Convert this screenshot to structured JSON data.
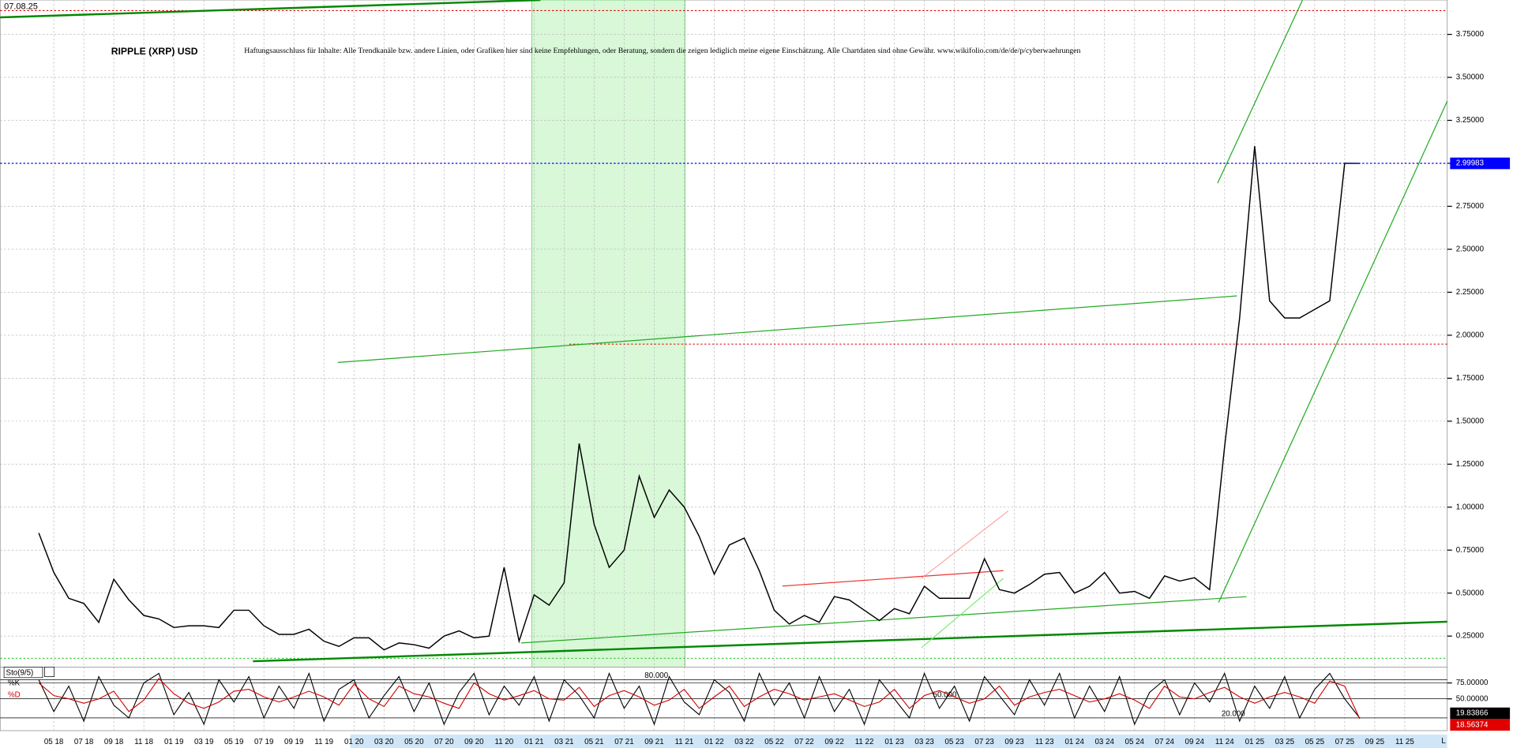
{
  "chart_data": [
    {
      "type": "line",
      "date_label": "07.08.25",
      "title": "RIPPLE (XRP) USD",
      "note": "Haftungsausschluss für Inhalte: Alle Trendkanäle bzw. andere Linien, oder Grafiken hier sind keine Empfehlungen, oder Beratung, sondern die zeigen lediglich meine eigene Einschätzung. Alle Chartdaten sind ohne Gewähr. www.wikifolio.com/de/de/p/cyberwaehrungen",
      "corner_label": "L",
      "categories": [
        null,
        "05 18",
        null,
        "07 18",
        null,
        "09 18",
        null,
        "11 18",
        null,
        "01 19",
        null,
        "03 19",
        null,
        "05 19",
        null,
        "07 19",
        null,
        "09 19",
        null,
        "11 19",
        null,
        "01 20",
        null,
        "03 20",
        null,
        "05 20",
        null,
        "07 20",
        null,
        "09 20",
        null,
        "11 20",
        null,
        "01 21",
        null,
        "03 21",
        null,
        "05 21",
        null,
        "07 21",
        null,
        "09 21",
        null,
        "11 21",
        null,
        "01 22",
        null,
        "03 22",
        null,
        "05 22",
        null,
        "07 22",
        null,
        "09 22",
        null,
        "11 22",
        null,
        "01 23",
        null,
        "03 23",
        null,
        "05 23",
        null,
        "07 23",
        null,
        "09 23",
        null,
        "11 23",
        null,
        "01 24",
        null,
        "03 24",
        null,
        "05 24",
        null,
        "07 24",
        null,
        "09 24",
        null,
        "11 24",
        null,
        "01 25",
        null,
        "03 25",
        null,
        "05 25",
        null,
        "07 25",
        null,
        "09 25",
        null,
        "11 25",
        null
      ],
      "series": [
        {
          "name": "RIPPLE (XRP) USD",
          "color": "#000000",
          "values": [
            0.85,
            0.62,
            0.47,
            0.44,
            0.33,
            0.58,
            0.46,
            0.37,
            0.35,
            0.3,
            0.31,
            0.31,
            0.3,
            0.4,
            0.4,
            0.31,
            0.26,
            0.26,
            0.29,
            0.22,
            0.19,
            0.24,
            0.24,
            0.17,
            0.21,
            0.2,
            0.18,
            0.25,
            0.28,
            0.24,
            0.25,
            0.65,
            0.22,
            0.49,
            0.43,
            0.56,
            1.37,
            0.9,
            0.65,
            0.75,
            1.18,
            0.94,
            1.1,
            1.0,
            0.83,
            0.61,
            0.78,
            0.82,
            0.63,
            0.4,
            0.32,
            0.37,
            0.33,
            0.48,
            0.46,
            0.4,
            0.34,
            0.41,
            0.38,
            0.54,
            0.47,
            0.47,
            0.47,
            0.7,
            0.52,
            0.5,
            0.55,
            0.61,
            0.62,
            0.5,
            0.54,
            0.62,
            0.5,
            0.51,
            0.47,
            0.6,
            0.57,
            0.59,
            0.52,
            1.35,
            2.1,
            3.1,
            2.2,
            2.1,
            2.1,
            2.15,
            2.2,
            3.0,
            2.99983,
            null,
            null,
            null,
            null
          ]
        }
      ],
      "ylim": [
        0.07,
        3.95
      ],
      "yticks": [
        {
          "value": 0.25,
          "label": "0.25000"
        },
        {
          "value": 0.5,
          "label": "0.50000"
        },
        {
          "value": 0.75,
          "label": "0.75000"
        },
        {
          "value": 1.0,
          "label": "1.00000"
        },
        {
          "value": 1.25,
          "label": "1.25000"
        },
        {
          "value": 1.5,
          "label": "1.50000"
        },
        {
          "value": 1.75,
          "label": "1.75000"
        },
        {
          "value": 2.0,
          "label": "2.00000"
        },
        {
          "value": 2.25,
          "label": "2.25000"
        },
        {
          "value": 2.5,
          "label": "2.50000"
        },
        {
          "value": 2.75,
          "label": "2.75000"
        },
        {
          "value": 3.0,
          "label": "3.00000"
        },
        {
          "value": 3.25,
          "label": "3.25000"
        },
        {
          "value": 3.5,
          "label": "3.50000"
        },
        {
          "value": 3.75,
          "label": "3.75000"
        }
      ],
      "grid": true,
      "current_color": "#0000ff"
    },
    {
      "type": "line",
      "title": "Sto(9/5)",
      "categories": [
        null,
        "05 18",
        null,
        "07 18",
        null,
        "09 18",
        null,
        "11 18",
        null,
        "01 19",
        null,
        "03 19",
        null,
        "05 19",
        null,
        "07 19",
        null,
        "09 19",
        null,
        "11 19",
        null,
        "01 20",
        null,
        "03 20",
        null,
        "05 20",
        null,
        "07 20",
        null,
        "09 20",
        null,
        "11 20",
        null,
        "01 21",
        null,
        "03 21",
        null,
        "05 21",
        null,
        "07 21",
        null,
        "09 21",
        null,
        "11 21",
        null,
        "01 22",
        null,
        "03 22",
        null,
        "05 22",
        null,
        "07 22",
        null,
        "09 22",
        null,
        "11 22",
        null,
        "01 23",
        null,
        "03 23",
        null,
        "05 23",
        null,
        "07 23",
        null,
        "09 23",
        null,
        "11 23",
        null,
        "01 24",
        null,
        "03 24",
        null,
        "05 24",
        null,
        "07 24",
        null,
        "09 24",
        null,
        "11 24",
        null,
        "01 25",
        null,
        "03 25",
        null,
        "05 25",
        null,
        "07 25",
        null,
        "09 25",
        null,
        "11 25",
        null
      ],
      "series": [
        {
          "name": "%K",
          "color": "#000000",
          "values": [
            80,
            30,
            70,
            15,
            85,
            40,
            20,
            75,
            90,
            25,
            60,
            10,
            80,
            45,
            85,
            20,
            70,
            35,
            90,
            15,
            65,
            80,
            20,
            55,
            85,
            30,
            75,
            10,
            60,
            90,
            25,
            70,
            40,
            85,
            15,
            80,
            55,
            20,
            90,
            35,
            70,
            10,
            85,
            45,
            25,
            80,
            60,
            15,
            90,
            40,
            75,
            20,
            85,
            30,
            65,
            10,
            80,
            50,
            20,
            90,
            35,
            70,
            15,
            85,
            55,
            25,
            80,
            40,
            90,
            20,
            70,
            30,
            85,
            10,
            60,
            80,
            25,
            75,
            45,
            90,
            15,
            70,
            35,
            85,
            20,
            65,
            90,
            50,
            19.83866,
            null,
            null,
            null,
            null
          ]
        },
        {
          "name": "%D",
          "color": "#d00000",
          "values": [
            75,
            55,
            50,
            43,
            50,
            62,
            30,
            48,
            82,
            58,
            43,
            35,
            45,
            62,
            65,
            53,
            45,
            53,
            62,
            53,
            40,
            73,
            50,
            38,
            70,
            58,
            53,
            43,
            35,
            75,
            58,
            48,
            55,
            63,
            50,
            48,
            68,
            38,
            55,
            63,
            53,
            40,
            48,
            65,
            35,
            53,
            70,
            38,
            53,
            65,
            58,
            48,
            53,
            58,
            48,
            38,
            45,
            65,
            35,
            55,
            63,
            53,
            43,
            50,
            70,
            40,
            53,
            60,
            65,
            55,
            45,
            50,
            58,
            48,
            35,
            70,
            53,
            50,
            60,
            68,
            53,
            43,
            53,
            60,
            53,
            43,
            78,
            70,
            18.56374,
            null,
            null,
            null,
            null
          ]
        }
      ],
      "ylim": [
        0,
        100
      ],
      "yticks": [
        {
          "value": 50,
          "label": "50.00000"
        },
        {
          "value": 75,
          "label": "75.00000"
        }
      ],
      "levels": [
        {
          "value": 80,
          "label": "80.000"
        },
        {
          "value": 50,
          "label": "50.000"
        },
        {
          "value": 20,
          "label": "20.000"
        }
      ]
    }
  ]
}
